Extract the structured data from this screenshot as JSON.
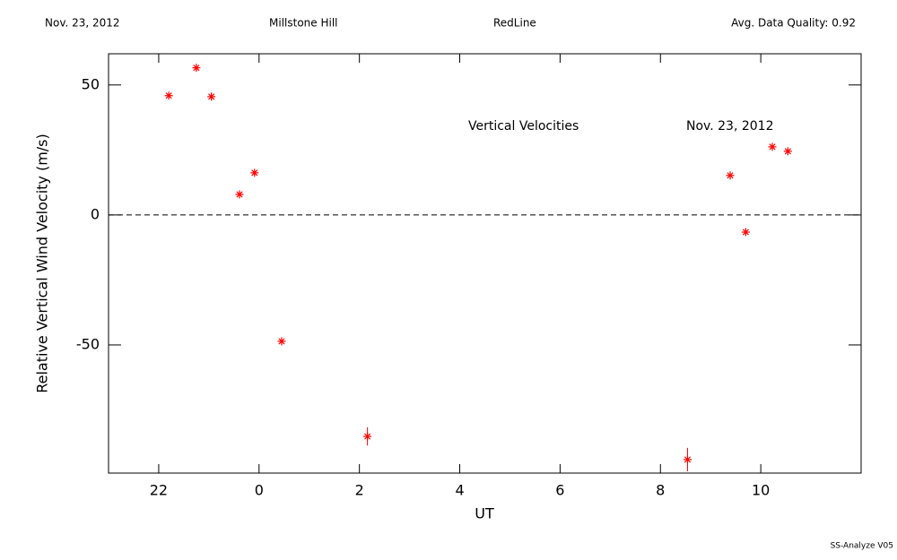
{
  "chart_data": {
    "type": "scatter",
    "header": [
      "Nov. 23, 2012",
      "Millstone Hill",
      "RedLine",
      "Avg. Data Quality: 0.92"
    ],
    "annotations": [
      "Vertical Velocities",
      "Nov. 23, 2012"
    ],
    "footer": "SS-Analyze V05",
    "x_label": "UT",
    "y_label": "Relative Vertical Wind Velocity (m/s)",
    "x": [
      22.2,
      22.75,
      23.05,
      23.61,
      23.91,
      24.45,
      26.16,
      32.54,
      33.39,
      33.7,
      34.23,
      34.54
    ],
    "values": [
      45.9,
      56.6,
      45.5,
      7.9,
      16.2,
      -48.6,
      -85.2,
      -94.1,
      15.2,
      -6.6,
      26.2,
      24.5
    ],
    "errors": [
      1,
      1,
      1,
      1,
      1,
      1,
      3.5,
      4.5,
      1,
      1,
      1,
      1
    ],
    "color": "#ff0000",
    "xlim": [
      21,
      36
    ],
    "xticks": [
      22,
      {
        "value": 24,
        "label": "0"
      },
      {
        "value": 26,
        "label": "2"
      },
      {
        "value": 28,
        "label": "4"
      },
      {
        "value": 30,
        "label": "6"
      },
      {
        "value": 32,
        "label": "8"
      },
      {
        "value": 34,
        "label": "10"
      }
    ],
    "ylim": [
      -99.3,
      62
    ],
    "yticks": [
      -50,
      0,
      50
    ],
    "hline": 0
  }
}
